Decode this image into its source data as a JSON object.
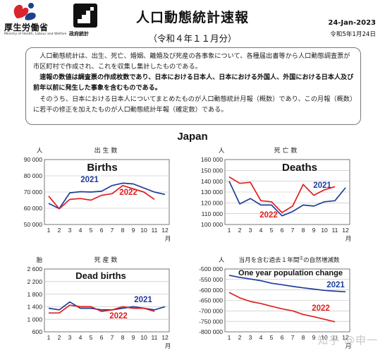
{
  "header": {
    "logo_mhlw": {
      "name": "厚生労働省",
      "sub": "Ministry of Health, Labour and Welfare"
    },
    "logo_stat": {
      "name": "政府統計"
    },
    "title": "人口動態統計速報",
    "subtitle": "（令和４年１１月分）",
    "date_en": "24-Jan-2023",
    "date_jp": "令和5年1月24日",
    "colors": {
      "mhlw_red": "#d9262c",
      "mhlw_blue": "#1d3f8f"
    }
  },
  "notice": {
    "p1": "人口動態統計は、出生、死亡、婚姻、離婚及び死産の各事象について、各種届出書等から人口動態調査票が市区町村で作成され、これを収集し集計したものである。",
    "p2": "速報の数値は調査票の作成枚数であり、日本における日本人、日本における外国人、外国における日本人及び前年以前に発生した事象を含むものである。",
    "p3": "そのうち、日本における日本人についてまとめたものが人口動態統計月報（概数）であり、この月報（概数）に若干の修正を加えたものが人口動態統計年報（確定数）である。"
  },
  "region": "Japan",
  "charts_meta": {
    "color_2021": "#1f3d9a",
    "color_2022": "#e01e1e"
  },
  "chart_data": [
    {
      "type": "line",
      "title_jp": "出 生 数",
      "title_en": "Births",
      "yunit": "人",
      "xunit": "月",
      "x": [
        1,
        2,
        3,
        4,
        5,
        6,
        7,
        8,
        9,
        10,
        11,
        12
      ],
      "xticks": [
        "1",
        "2",
        "3",
        "4",
        "5",
        "6",
        "7",
        "8",
        "9",
        "10",
        "11",
        "12"
      ],
      "ylim": [
        50000,
        90000
      ],
      "yticks": [
        "50 000",
        "60 000",
        "70 000",
        "80 000",
        "90 000"
      ],
      "ytick_values": [
        50000,
        60000,
        70000,
        80000,
        90000
      ],
      "series": [
        {
          "name": "2021",
          "values": [
            63000,
            59800,
            69500,
            70200,
            70000,
            70500,
            74000,
            75500,
            75000,
            72500,
            70000,
            68500
          ]
        },
        {
          "name": "2022",
          "values": [
            67500,
            59700,
            65500,
            66000,
            65000,
            68000,
            69000,
            74000,
            72000,
            70000,
            65500,
            null
          ]
        }
      ]
    },
    {
      "type": "line",
      "title_jp": "死 亡 数",
      "title_en": "Deaths",
      "yunit": "人",
      "xunit": "月",
      "x": [
        1,
        2,
        3,
        4,
        5,
        6,
        7,
        8,
        9,
        10,
        11,
        12
      ],
      "xticks": [
        "1",
        "2",
        "3",
        "4",
        "5",
        "6",
        "7",
        "8",
        "9",
        "10",
        "11",
        "12"
      ],
      "ylim": [
        100000,
        160000
      ],
      "yticks": [
        "100 000",
        "110 000",
        "120 000",
        "130 000",
        "140 000",
        "150 000",
        "160 000"
      ],
      "ytick_values": [
        100000,
        110000,
        120000,
        130000,
        140000,
        150000,
        160000
      ],
      "series": [
        {
          "name": "2021",
          "values": [
            140000,
            119000,
            124000,
            118000,
            118000,
            108000,
            112000,
            118000,
            117000,
            121000,
            122000,
            134000
          ]
        },
        {
          "name": "2022",
          "values": [
            144000,
            138000,
            139000,
            122000,
            121000,
            111000,
            117000,
            137000,
            127000,
            132000,
            135000,
            null
          ]
        }
      ]
    },
    {
      "type": "line",
      "title_jp": "死 産 数",
      "title_en": "Dead births",
      "yunit": "胎",
      "xunit": "月",
      "x": [
        1,
        2,
        3,
        4,
        5,
        6,
        7,
        8,
        9,
        10,
        11,
        12
      ],
      "xticks": [
        "1",
        "2",
        "3",
        "4",
        "5",
        "6",
        "7",
        "8",
        "9",
        "10",
        "11",
        "12"
      ],
      "ylim": [
        600,
        2600
      ],
      "yticks": [
        "600",
        "1 000",
        "1 400",
        "1 800",
        "2 200",
        "2 600"
      ],
      "ytick_values": [
        600,
        1000,
        1400,
        1800,
        2200,
        2600
      ],
      "series": [
        {
          "name": "2021",
          "values": [
            1350,
            1300,
            1550,
            1350,
            1350,
            1300,
            1300,
            1350,
            1400,
            1350,
            1300,
            1400
          ]
        },
        {
          "name": "2022",
          "values": [
            1200,
            1200,
            1450,
            1400,
            1400,
            1250,
            1300,
            1400,
            1350,
            1350,
            1250,
            null
          ]
        }
      ]
    },
    {
      "type": "line",
      "title_jp": "当月を含む過去１年間",
      "title_sup": "注",
      "title_tail": "の自然増減数",
      "title_en": "One year population change",
      "yunit": "人",
      "xunit": "月",
      "x": [
        1,
        2,
        3,
        4,
        5,
        6,
        7,
        8,
        9,
        10,
        11,
        12
      ],
      "xticks": [
        "1",
        "2",
        "3",
        "4",
        "5",
        "6",
        "7",
        "8",
        "9",
        "10",
        "11",
        "12"
      ],
      "ylim": [
        -800000,
        -500000
      ],
      "yticks": [
        "-500 000",
        "-550 000",
        "-600 000",
        "-650 000",
        "-700 000",
        "-750 000",
        "-800 000"
      ],
      "ytick_values": [
        -500000,
        -550000,
        -600000,
        -650000,
        -700000,
        -750000,
        -800000
      ],
      "series": [
        {
          "name": "2021",
          "values": [
            -530000,
            -540000,
            -548000,
            -556000,
            -568000,
            -575000,
            -583000,
            -590000,
            -596000,
            -602000,
            -606000,
            -609000
          ]
        },
        {
          "name": "2022",
          "values": [
            -612000,
            -638000,
            -655000,
            -665000,
            -678000,
            -690000,
            -700000,
            -717000,
            -728000,
            -740000,
            -752000,
            null
          ]
        }
      ]
    }
  ],
  "watermark": "知乎 @申一"
}
